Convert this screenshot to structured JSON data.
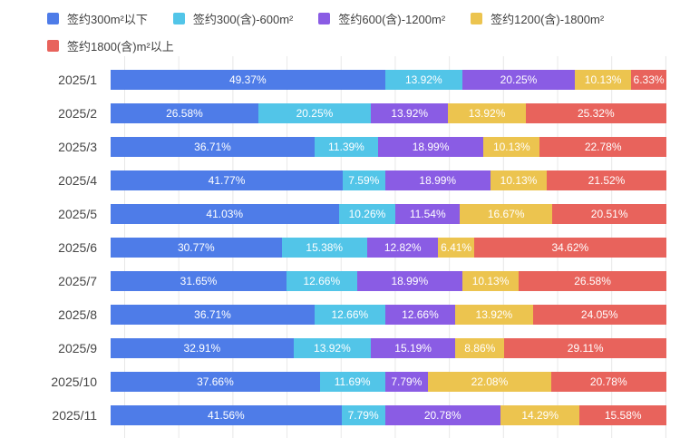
{
  "chart_data": {
    "type": "bar",
    "orientation": "horizontal",
    "stacked": true,
    "unit": "%",
    "grid": true,
    "legend_position": "top",
    "xlim": [
      0,
      100
    ],
    "gridline_step_percent": 10,
    "value_label_decimals": 2,
    "categories": [
      "2025/1",
      "2025/2",
      "2025/3",
      "2025/4",
      "2025/5",
      "2025/6",
      "2025/7",
      "2025/8",
      "2025/9",
      "2025/10",
      "2025/11"
    ],
    "series": [
      {
        "name": "签约300m²以下",
        "color": "#4e7ce8",
        "values": [
          49.37,
          26.58,
          36.71,
          41.77,
          41.03,
          30.77,
          31.65,
          36.71,
          32.91,
          37.66,
          41.56
        ]
      },
      {
        "name": "签约300(含)-600m²",
        "color": "#52c5e8",
        "values": [
          13.92,
          20.25,
          11.39,
          7.59,
          10.26,
          15.38,
          12.66,
          12.66,
          13.92,
          11.69,
          7.79
        ]
      },
      {
        "name": "签约600(含)-1200m²",
        "color": "#8a5ce4",
        "values": [
          20.25,
          13.92,
          18.99,
          18.99,
          11.54,
          12.82,
          18.99,
          12.66,
          15.19,
          7.79,
          20.78
        ]
      },
      {
        "name": "签约1200(含)-1800m²",
        "color": "#ecc44f",
        "values": [
          10.13,
          13.92,
          10.13,
          10.13,
          16.67,
          6.41,
          10.13,
          13.92,
          8.86,
          22.08,
          14.29
        ]
      },
      {
        "name": "签约1800(含)m²以上",
        "color": "#e8635c",
        "values": [
          6.33,
          25.32,
          22.78,
          21.52,
          20.51,
          34.62,
          26.58,
          24.05,
          29.11,
          20.78,
          15.58
        ]
      }
    ]
  },
  "colors": {
    "background": "#ffffff",
    "grid": "#e8e8e8",
    "axis_label": "#464646",
    "legend_text": "#3f3f3f",
    "value_label": "#ffffff"
  }
}
